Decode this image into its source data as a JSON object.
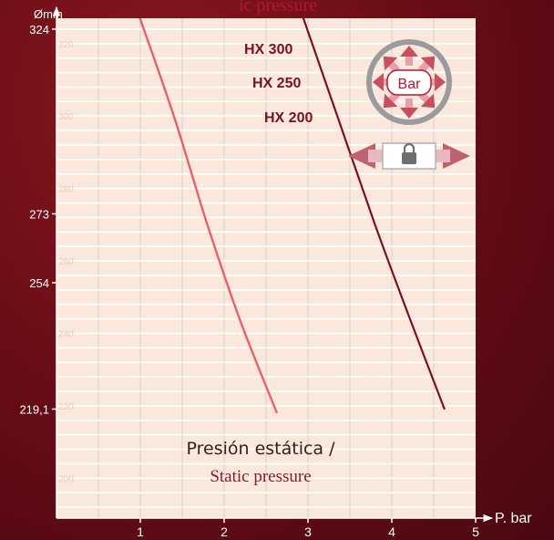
{
  "header": {
    "title_fragment": "ic pressure"
  },
  "caption": {
    "line1": "Presión estática /",
    "line2": "Static pressure"
  },
  "pressure_icon": {
    "label": "Bar"
  },
  "colors": {
    "background": "#6a0d17",
    "plot_background": "#fbe8dc",
    "static_curve": "#e8606c",
    "series_curve": "#7a1028",
    "series_label": "#7a1020",
    "caption_line2": "#8a1826"
  },
  "chart_data": {
    "type": "line",
    "title": "",
    "xlabel": "P. bar",
    "ylabel": "Ømm",
    "xlim": [
      0,
      5
    ],
    "ylim": [
      189,
      327
    ],
    "x_ticks": [
      "1",
      "2",
      "3",
      "4",
      "5"
    ],
    "y_ticks": [
      "324",
      "273",
      "254",
      "219,1"
    ],
    "y_inner_ticks": [
      "320",
      "300",
      "280",
      "260",
      "240",
      "220",
      "200"
    ],
    "grid": true,
    "series_labels": [
      "HX 300",
      "HX 250",
      "HX 200"
    ],
    "series": [
      {
        "name": "Presión estática / Static pressure",
        "x": [
          0.95,
          1.4,
          1.8,
          2.2,
          2.63
        ],
        "y": [
          330,
          300,
          270,
          243,
          218
        ]
      },
      {
        "name": "",
        "x": [
          2.9,
          3.35,
          3.8,
          4.2,
          4.63
        ],
        "y": [
          330,
          300,
          270,
          245,
          219
        ]
      }
    ]
  }
}
